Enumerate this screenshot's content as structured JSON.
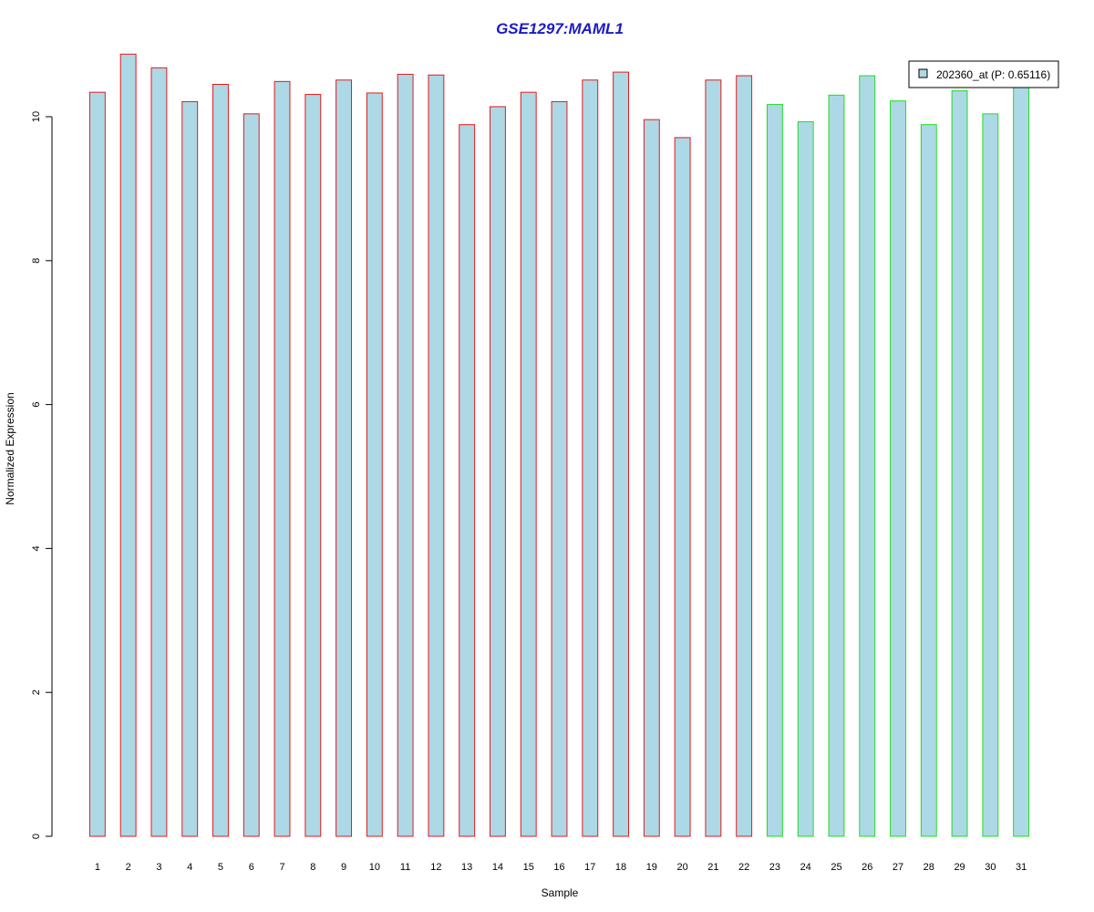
{
  "chart_data": {
    "type": "bar",
    "title": "GSE1297:MAML1",
    "xlabel": "Sample",
    "ylabel": "Normalized Expression",
    "categories": [
      "1",
      "2",
      "3",
      "4",
      "5",
      "6",
      "7",
      "8",
      "9",
      "10",
      "11",
      "12",
      "13",
      "14",
      "15",
      "16",
      "17",
      "18",
      "19",
      "20",
      "21",
      "22",
      "23",
      "24",
      "25",
      "26",
      "27",
      "28",
      "29",
      "30",
      "31"
    ],
    "values": [
      10.34,
      10.87,
      10.68,
      10.21,
      10.45,
      10.04,
      10.49,
      10.31,
      10.51,
      10.33,
      10.59,
      10.58,
      9.89,
      10.14,
      10.34,
      10.21,
      10.51,
      10.62,
      9.96,
      9.71,
      10.51,
      10.57,
      10.17,
      9.93,
      10.3,
      10.57,
      10.22,
      9.89,
      10.36,
      10.04,
      10.47
    ],
    "bar_border_colors": [
      "#e41a1c",
      "#e41a1c",
      "#e41a1c",
      "#e41a1c",
      "#e41a1c",
      "#e41a1c",
      "#e41a1c",
      "#e41a1c",
      "#e41a1c",
      "#e41a1c",
      "#e41a1c",
      "#e41a1c",
      "#e41a1c",
      "#e41a1c",
      "#e41a1c",
      "#e41a1c",
      "#e41a1c",
      "#e41a1c",
      "#e41a1c",
      "#e41a1c",
      "#e41a1c",
      "#e41a1c",
      "#22dd22",
      "#22dd22",
      "#22dd22",
      "#22dd22",
      "#22dd22",
      "#22dd22",
      "#22dd22",
      "#22dd22",
      "#22dd22"
    ],
    "bar_fill_color": "#add8e6",
    "title_color": "#1a1acc",
    "ylim": [
      0,
      11
    ],
    "yticks": [
      0,
      2,
      4,
      6,
      8,
      10
    ],
    "legend": {
      "entries": [
        {
          "label": "202360_at (P: 0.65116)",
          "color": "#add8e6"
        }
      ],
      "placement": "top-right"
    },
    "grid": false
  }
}
